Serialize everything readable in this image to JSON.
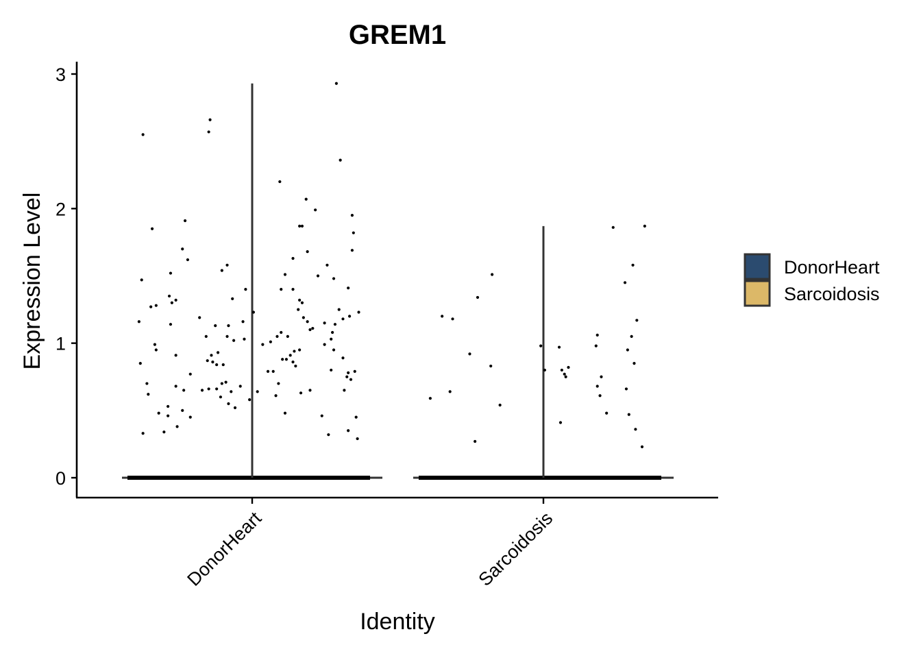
{
  "chart_data": {
    "type": "violin",
    "title": "GREM1",
    "xlabel": "Identity",
    "ylabel": "Expression Level",
    "categories": [
      "DonorHeart",
      "Sarcoidosis"
    ],
    "ylim": [
      -0.14,
      3.07
    ],
    "yticks": [
      0,
      1,
      2,
      3
    ],
    "grid": false,
    "legend": {
      "position": "right",
      "entries": [
        {
          "label": "DonorHeart",
          "color": "#2b4b6f"
        },
        {
          "label": "Sarcoidosis",
          "color": "#dcb868"
        }
      ]
    },
    "series": [
      {
        "name": "DonorHeart",
        "max": 2.93,
        "points": [
          [
            -0.83,
            2.55
          ],
          [
            -0.33,
            2.57
          ],
          [
            -0.32,
            2.66
          ],
          [
            0.64,
            2.93
          ],
          [
            0.67,
            2.36
          ],
          [
            0.21,
            2.2
          ],
          [
            0.41,
            2.07
          ],
          [
            0.48,
            1.99
          ],
          [
            0.76,
            1.95
          ],
          [
            -0.76,
            1.85
          ],
          [
            -0.51,
            1.91
          ],
          [
            0.36,
            1.87
          ],
          [
            0.38,
            1.87
          ],
          [
            0.77,
            1.82
          ],
          [
            -0.53,
            1.7
          ],
          [
            0.76,
            1.69
          ],
          [
            0.42,
            1.68
          ],
          [
            -0.49,
            1.62
          ],
          [
            0.31,
            1.63
          ],
          [
            0.57,
            1.58
          ],
          [
            0.62,
            1.48
          ],
          [
            -0.19,
            1.58
          ],
          [
            -0.23,
            1.54
          ],
          [
            -0.62,
            1.52
          ],
          [
            0.25,
            1.51
          ],
          [
            0.5,
            1.5
          ],
          [
            0.73,
            1.41
          ],
          [
            0.31,
            1.4
          ],
          [
            0.22,
            1.4
          ],
          [
            -0.05,
            1.4
          ],
          [
            -0.84,
            1.47
          ],
          [
            -0.73,
            1.28
          ],
          [
            -0.77,
            1.27
          ],
          [
            -0.63,
            1.35
          ],
          [
            -0.61,
            1.3
          ],
          [
            -0.58,
            1.32
          ],
          [
            -0.28,
            1.13
          ],
          [
            -0.18,
            1.13
          ],
          [
            -0.15,
            1.33
          ],
          [
            -0.07,
            1.16
          ],
          [
            0.01,
            1.23
          ],
          [
            0.36,
            1.32
          ],
          [
            0.38,
            1.3
          ],
          [
            0.35,
            1.25
          ],
          [
            0.39,
            1.19
          ],
          [
            0.42,
            1.16
          ],
          [
            0.44,
            1.1
          ],
          [
            0.46,
            1.11
          ],
          [
            0.55,
            1.15
          ],
          [
            0.61,
            1.08
          ],
          [
            0.63,
            1.14
          ],
          [
            0.66,
            1.25
          ],
          [
            0.69,
            1.18
          ],
          [
            0.74,
            1.2
          ],
          [
            0.81,
            1.23
          ],
          [
            -0.86,
            1.16
          ],
          [
            -0.62,
            1.14
          ],
          [
            -0.4,
            1.19
          ],
          [
            -0.35,
            1.05
          ],
          [
            -0.31,
            0.91
          ],
          [
            -0.26,
            0.93
          ],
          [
            -0.22,
            0.84
          ],
          [
            -0.19,
            1.05
          ],
          [
            -0.14,
            1.02
          ],
          [
            -0.06,
            1.03
          ],
          [
            0.08,
            0.99
          ],
          [
            0.14,
            1.01
          ],
          [
            0.19,
            1.05
          ],
          [
            0.22,
            1.08
          ],
          [
            0.27,
            1.05
          ],
          [
            0.32,
            0.94
          ],
          [
            0.36,
            0.95
          ],
          [
            0.55,
            0.99
          ],
          [
            0.6,
            1.03
          ],
          [
            0.62,
            0.95
          ],
          [
            0.73,
            0.78
          ],
          [
            0.78,
            0.79
          ],
          [
            -0.74,
            0.99
          ],
          [
            -0.73,
            0.95
          ],
          [
            -0.58,
            0.91
          ],
          [
            -0.47,
            0.77
          ],
          [
            -0.34,
            0.87
          ],
          [
            -0.3,
            0.86
          ],
          [
            -0.27,
            0.84
          ],
          [
            -0.23,
            0.7
          ],
          [
            -0.2,
            0.71
          ],
          [
            -0.16,
            0.64
          ],
          [
            -0.09,
            0.68
          ],
          [
            0.12,
            0.79
          ],
          [
            0.16,
            0.79
          ],
          [
            0.2,
            0.7
          ],
          [
            0.23,
            0.88
          ],
          [
            0.26,
            0.88
          ],
          [
            0.29,
            0.91
          ],
          [
            0.31,
            0.86
          ],
          [
            0.33,
            0.83
          ],
          [
            0.69,
            0.89
          ],
          [
            0.72,
            0.75
          ],
          [
            0.75,
            0.73
          ],
          [
            -0.85,
            0.85
          ],
          [
            -0.8,
            0.7
          ],
          [
            -0.64,
            0.53
          ],
          [
            -0.58,
            0.68
          ],
          [
            -0.52,
            0.65
          ],
          [
            -0.47,
            0.45
          ],
          [
            -0.38,
            0.65
          ],
          [
            -0.33,
            0.66
          ],
          [
            -0.27,
            0.66
          ],
          [
            -0.24,
            0.6
          ],
          [
            -0.18,
            0.55
          ],
          [
            -0.13,
            0.52
          ],
          [
            -0.02,
            0.58
          ],
          [
            0.04,
            0.64
          ],
          [
            0.18,
            0.61
          ],
          [
            0.25,
            0.48
          ],
          [
            0.37,
            0.63
          ],
          [
            0.44,
            0.65
          ],
          [
            0.6,
            0.8
          ],
          [
            0.7,
            0.65
          ],
          [
            -0.83,
            0.33
          ],
          [
            -0.79,
            0.62
          ],
          [
            -0.71,
            0.48
          ],
          [
            -0.67,
            0.34
          ],
          [
            -0.64,
            0.46
          ],
          [
            -0.57,
            0.38
          ],
          [
            -0.53,
            0.5
          ],
          [
            0.53,
            0.46
          ],
          [
            0.58,
            0.32
          ],
          [
            0.73,
            0.35
          ],
          [
            0.79,
            0.45
          ],
          [
            0.8,
            0.29
          ]
        ]
      },
      {
        "name": "Sarcoidosis",
        "max": 1.87,
        "points": [
          [
            -0.86,
            0.59
          ],
          [
            -0.77,
            1.2
          ],
          [
            -0.71,
            0.64
          ],
          [
            -0.69,
            1.18
          ],
          [
            -0.56,
            0.92
          ],
          [
            -0.52,
            0.27
          ],
          [
            -0.5,
            1.34
          ],
          [
            -0.4,
            0.83
          ],
          [
            -0.39,
            1.51
          ],
          [
            -0.33,
            0.54
          ],
          [
            -0.02,
            0.98
          ],
          [
            0.01,
            0.8
          ],
          [
            0.12,
            0.97
          ],
          [
            0.13,
            0.41
          ],
          [
            0.14,
            0.8
          ],
          [
            0.16,
            0.77
          ],
          [
            0.17,
            0.75
          ],
          [
            0.19,
            0.82
          ],
          [
            0.4,
            0.98
          ],
          [
            0.41,
            1.06
          ],
          [
            0.41,
            0.68
          ],
          [
            0.43,
            0.61
          ],
          [
            0.44,
            0.75
          ],
          [
            0.48,
            0.48
          ],
          [
            0.53,
            1.86
          ],
          [
            0.62,
            1.45
          ],
          [
            0.63,
            0.66
          ],
          [
            0.64,
            0.95
          ],
          [
            0.65,
            0.47
          ],
          [
            0.67,
            1.05
          ],
          [
            0.68,
            1.58
          ],
          [
            0.69,
            0.85
          ],
          [
            0.7,
            0.36
          ],
          [
            0.71,
            1.17
          ],
          [
            0.75,
            0.23
          ],
          [
            0.77,
            1.87
          ]
        ]
      }
    ]
  }
}
